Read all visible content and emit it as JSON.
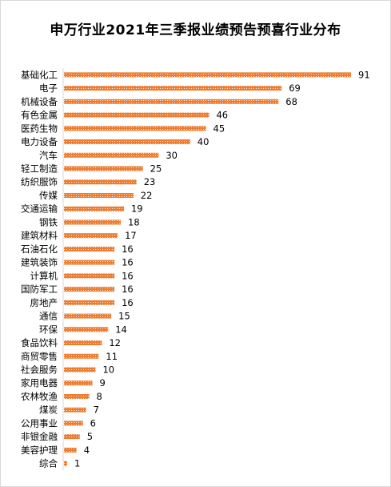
{
  "chart_data": {
    "type": "bar",
    "orientation": "horizontal",
    "title": "申万行业2021年三季报业绩预告预喜行业分布",
    "xlabel": "",
    "ylabel": "",
    "xlim": [
      0,
      91
    ],
    "grid": false,
    "legend": "none",
    "bar_color": "#ed7d31",
    "bar_pattern": "dotted",
    "categories": [
      "基础化工",
      "电子",
      "机械设备",
      "有色金属",
      "医药生物",
      "电力设备",
      "汽车",
      "轻工制造",
      "纺织服饰",
      "传媒",
      "交通运输",
      "钢铁",
      "建筑材料",
      "石油石化",
      "建筑装饰",
      "计算机",
      "国防军工",
      "房地产",
      "通信",
      "环保",
      "食品饮料",
      "商贸零售",
      "社会服务",
      "家用电器",
      "农林牧渔",
      "煤炭",
      "公用事业",
      "非银金融",
      "美容护理",
      "综合"
    ],
    "values": [
      91,
      69,
      68,
      46,
      45,
      40,
      30,
      25,
      23,
      22,
      19,
      18,
      17,
      16,
      16,
      16,
      16,
      16,
      15,
      14,
      12,
      11,
      10,
      9,
      8,
      7,
      6,
      5,
      4,
      1
    ]
  }
}
